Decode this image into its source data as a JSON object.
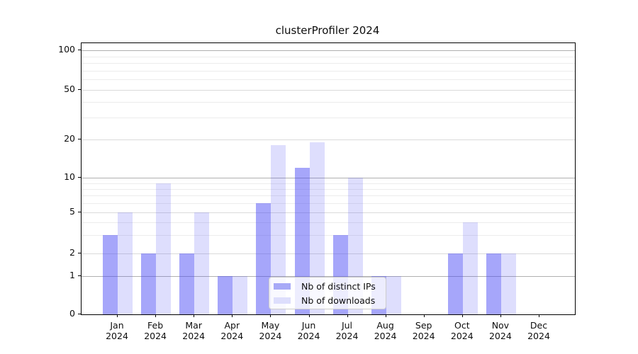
{
  "chart_data": {
    "type": "bar",
    "title": "clusterProfiler 2024",
    "categories": [
      "Jan",
      "Feb",
      "Mar",
      "Apr",
      "May",
      "Jun",
      "Jul",
      "Aug",
      "Sep",
      "Oct",
      "Nov",
      "Dec"
    ],
    "year_label": "2024",
    "series": [
      {
        "name": "Nb of distinct IPs",
        "fill": "rgba(68,70,244,0.48)",
        "legend_color": "#a7a9f7",
        "values": [
          3,
          2,
          2,
          1,
          6,
          12,
          3,
          1,
          0,
          2,
          2,
          0
        ]
      },
      {
        "name": "Nb of downloads",
        "fill": "rgba(68,70,244,0.175)",
        "legend_color": "#dddefc",
        "values": [
          5,
          9,
          5,
          1,
          18,
          19,
          10,
          1,
          0,
          4,
          2,
          0
        ]
      }
    ],
    "y_axis": {
      "scale": "log-like (symlog, linear below 1)",
      "ylim": [
        0,
        100
      ],
      "tick_labels": [
        "100",
        "50",
        "20",
        "10",
        "5",
        "2",
        "1",
        "0"
      ],
      "tick_values": [
        100,
        50,
        20,
        10,
        5,
        2,
        1,
        0
      ],
      "minor_gridline_values": [
        90,
        80,
        70,
        60,
        40,
        30,
        9,
        8,
        7,
        6,
        4,
        3
      ]
    },
    "legend": {
      "position": "lower center",
      "entries": [
        "Nb of distinct IPs",
        "Nb of downloads"
      ]
    },
    "grid": true
  }
}
